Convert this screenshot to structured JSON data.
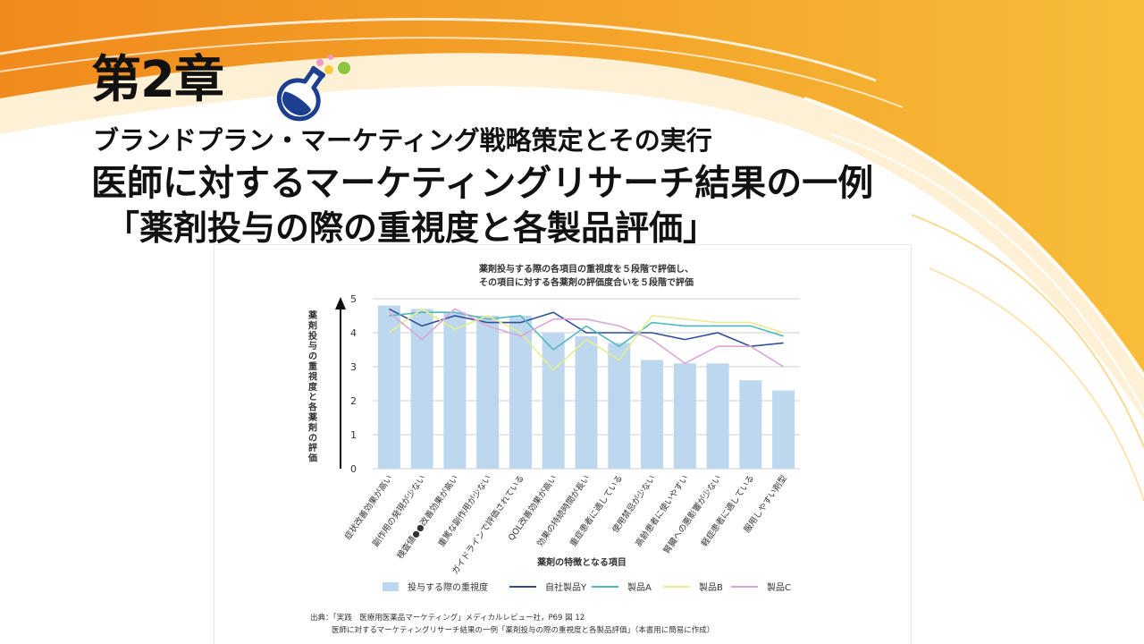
{
  "header": {
    "chapter": "第2章",
    "subtitle": "ブランドプラン・マーケティング戦略策定とその実行",
    "title_line1": "医師に対するマーケティングリサーチ結果の一例",
    "title_line2": "「薬剤投与の際の重視度と各製品評価」"
  },
  "decor": {
    "flask_icon": "flask-icon",
    "accent_orange": "#f39a1e",
    "accent_yellow": "#f7c23c",
    "flask_blue": "#1d3f8f",
    "dot_pink": "#e99ac9",
    "dot_yellow": "#f5c93a",
    "dot_green": "#8dc63f"
  },
  "chart_data": {
    "type": "bar",
    "title_line1": "薬剤投与する際の各項目の重視度を５段階で評価し、",
    "title_line2": "その項目に対する各薬剤の評価度合いを５段階で評価",
    "ylabel": "薬剤投与の重視度と各薬剤の評価",
    "xlabel": "薬剤の特徴となる項目",
    "ylim": [
      0,
      5
    ],
    "yticks": [
      0,
      1,
      2,
      3,
      4,
      5
    ],
    "grid": true,
    "legend_position": "bottom",
    "categories": [
      "症状改善効果が高い",
      "副作用の発現が少ない",
      "検査値●●改善効果が高い",
      "重篤な副作用が少ない",
      "ガイドラインで評価されている",
      "QOL改善効果が高い",
      "効果の持続時間が長い",
      "重症患者に適している",
      "使用禁忌が少ない",
      "高齢患者に使いやすい",
      "腎臓への悪影響が少ない",
      "軽症患者に適している",
      "服用しやすい剤型"
    ],
    "bar_series": {
      "name": "投与する際の重視度",
      "color": "#bcd7ee",
      "values": [
        4.8,
        4.7,
        4.6,
        4.5,
        4.5,
        4.0,
        3.9,
        3.7,
        3.2,
        3.1,
        3.1,
        2.6,
        2.3
      ]
    },
    "line_series": [
      {
        "name": "自社製品Y",
        "color": "#2f4f98",
        "values": [
          4.7,
          4.2,
          4.5,
          4.3,
          4.3,
          4.6,
          4.0,
          4.0,
          4.0,
          3.8,
          4.0,
          3.6,
          3.7
        ]
      },
      {
        "name": "製品A",
        "color": "#4fb9c0",
        "values": [
          4.5,
          4.6,
          4.6,
          4.4,
          4.5,
          3.5,
          4.2,
          3.6,
          4.3,
          4.2,
          4.2,
          4.2,
          3.9
        ]
      },
      {
        "name": "製品B",
        "color": "#e9ec91",
        "values": [
          4.0,
          4.7,
          4.1,
          4.5,
          4.0,
          2.9,
          3.8,
          3.2,
          4.5,
          4.4,
          4.3,
          4.3,
          4.0
        ]
      },
      {
        "name": "製品C",
        "color": "#d8a6d9",
        "values": [
          4.6,
          3.8,
          4.7,
          4.2,
          3.9,
          4.4,
          4.4,
          4.2,
          3.8,
          3.1,
          3.6,
          3.6,
          3.0
        ]
      }
    ]
  },
  "source": {
    "line1": "出典：「実践　医療用医薬品マーケティング」メディカルレビュー社，P69 図 12",
    "line2": "医師に対するマーケティングリサーチ結果の一例「薬剤投与の際の重視度と各製品評価」（本書用に簡易に作成）"
  }
}
